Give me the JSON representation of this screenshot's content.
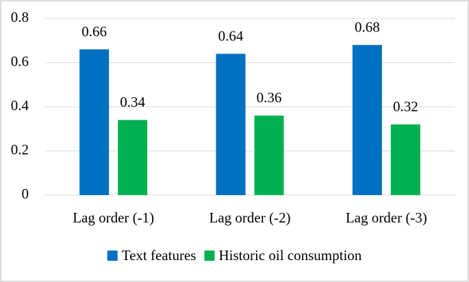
{
  "chart_data": {
    "type": "bar",
    "categories": [
      "Lag order (-1)",
      "Lag order (-2)",
      "Lag order (-3)"
    ],
    "series": [
      {
        "name": "Text features",
        "color": "#0070c0",
        "values": [
          0.66,
          0.64,
          0.68
        ]
      },
      {
        "name": "Historic oil consumption",
        "color": "#00b050",
        "values": [
          0.34,
          0.36,
          0.32
        ]
      }
    ],
    "ylim": [
      0,
      0.8
    ],
    "yticks": [
      0,
      0.2,
      0.4,
      0.6,
      0.8
    ],
    "grid": true,
    "legend": "bottom"
  }
}
